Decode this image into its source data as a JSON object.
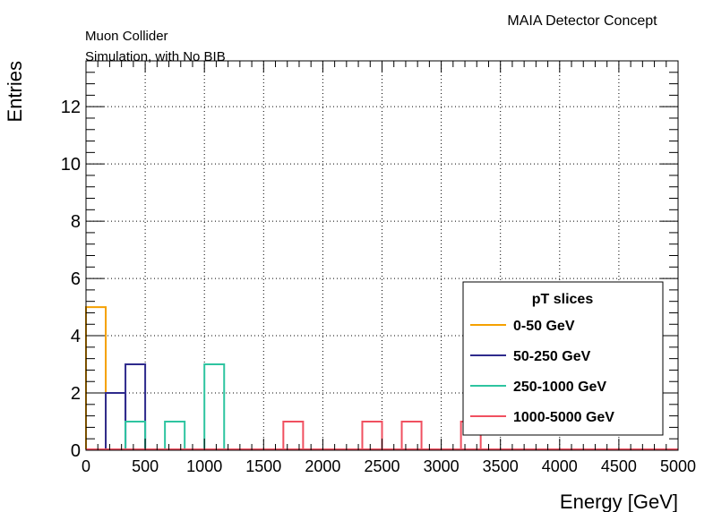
{
  "header": {
    "experiment": "MAIA Detector Concept",
    "line1": "Muon Collider",
    "line2": "Simulation, with No BIB"
  },
  "chart_data": {
    "type": "histogram",
    "xlabel": "Energy [GeV]",
    "ylabel": "Entries",
    "xlim": [
      0,
      5000
    ],
    "ylim": [
      0,
      13.6
    ],
    "bin_width": 166.67,
    "grid": true,
    "x_ticks": [
      "0",
      "500",
      "1000",
      "1500",
      "2000",
      "2500",
      "3000",
      "3500",
      "4000",
      "4500",
      "5000"
    ],
    "y_ticks": [
      "0",
      "2",
      "4",
      "6",
      "8",
      "10",
      "12"
    ],
    "legend": {
      "title": "pT slices",
      "placement": "lower-right"
    },
    "series": [
      {
        "name": "0-50 GeV",
        "color": "#f5a100",
        "bins": [
          {
            "x0": 0,
            "x1": 166.67,
            "y": 5
          }
        ]
      },
      {
        "name": "50-250 GeV",
        "color": "#2e2a8c",
        "bins": [
          {
            "x0": 166.67,
            "x1": 333.33,
            "y": 2
          },
          {
            "x0": 333.33,
            "x1": 500,
            "y": 3
          }
        ]
      },
      {
        "name": "250-1000 GeV",
        "color": "#2ec4a0",
        "bins": [
          {
            "x0": 333.33,
            "x1": 500,
            "y": 1
          },
          {
            "x0": 666.67,
            "x1": 833.33,
            "y": 1
          },
          {
            "x0": 1000,
            "x1": 1166.67,
            "y": 3
          }
        ]
      },
      {
        "name": "1000-5000 GeV",
        "color": "#f05060",
        "bins": [
          {
            "x0": 1666.67,
            "x1": 1833.33,
            "y": 1
          },
          {
            "x0": 2333.33,
            "x1": 2500,
            "y": 1
          },
          {
            "x0": 2666.67,
            "x1": 2833.33,
            "y": 1
          },
          {
            "x0": 3166.67,
            "x1": 3333.33,
            "y": 1
          }
        ]
      }
    ]
  }
}
